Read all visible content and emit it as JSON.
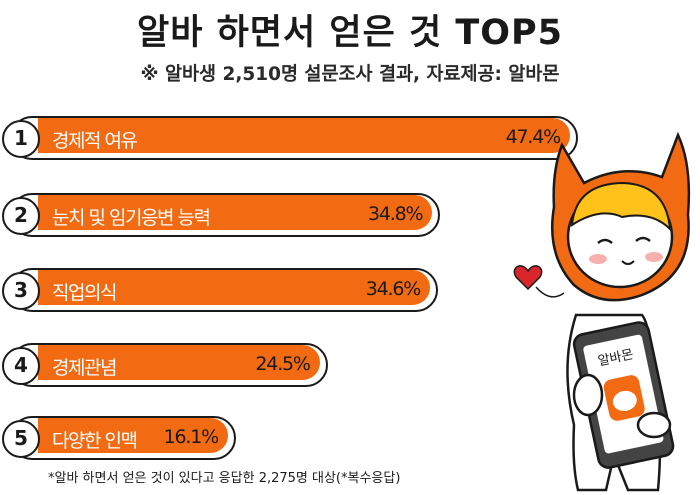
{
  "title": "알바 하면서 얻은 것  TOP5",
  "subtitle": "※ 알바생 2,510명 설문조사 결과, 자료제공: 알바몬",
  "footnote": "*알바 하면서 얻은 것이 있다고 응답한 2,275명 대상(*복수응답)",
  "phone_label": "알바몬",
  "colors": {
    "bar": "#f26a12",
    "outline": "#1a1a1a",
    "heart": "#d8262c"
  },
  "chart_data": {
    "type": "bar",
    "orientation": "horizontal",
    "categories": [
      "경제적 여유",
      "눈치 및 임기응변 능력",
      "직업의식",
      "경제관념",
      "다양한 인맥"
    ],
    "ranks": [
      "1",
      "2",
      "3",
      "4",
      "5"
    ],
    "values": [
      47.4,
      34.8,
      34.6,
      24.5,
      16.1
    ],
    "value_labels": [
      "47.4%",
      "34.8%",
      "34.6%",
      "24.5%",
      "16.1%"
    ],
    "title": "알바 하면서 얻은 것  TOP5",
    "xlabel": "",
    "ylabel": "",
    "grid": false
  }
}
